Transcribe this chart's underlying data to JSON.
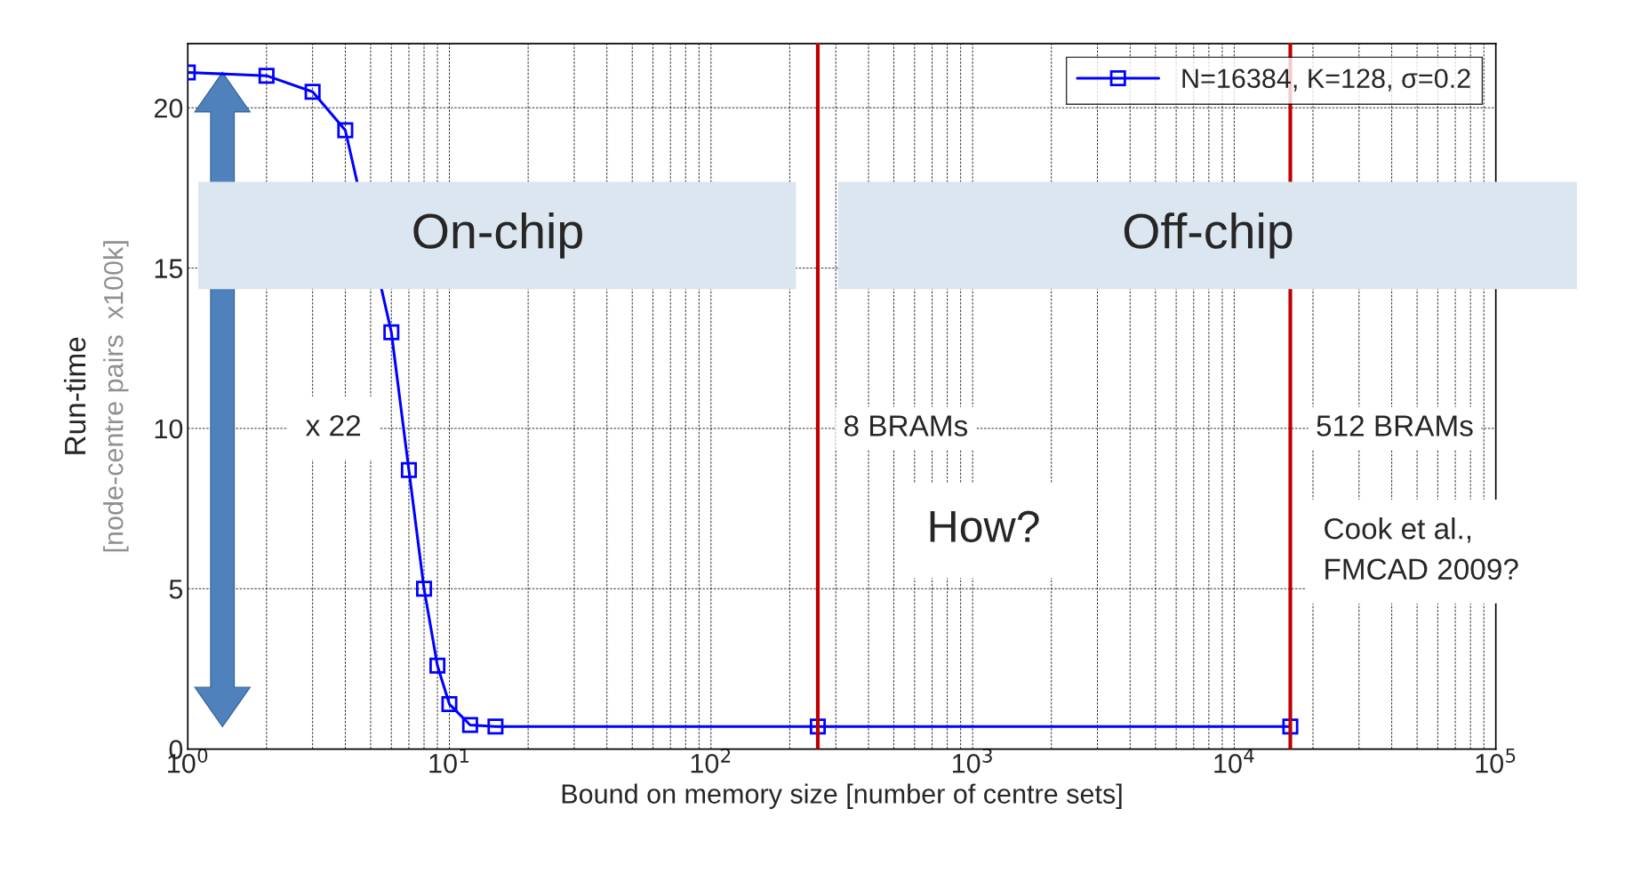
{
  "chart_data": {
    "type": "line",
    "xlabel": "Bound on memory size [number of centre sets]",
    "ylabel": "Run-time\n[node-centre pairs  x100k]",
    "x": [
      1,
      2,
      3,
      4,
      6,
      7,
      8,
      9,
      10,
      12,
      15,
      256,
      16384
    ],
    "series": [
      {
        "name": "N=16384, K=128, σ=0.2",
        "color": "#0000ff",
        "values": [
          21.1,
          21.0,
          20.5,
          19.3,
          13.0,
          8.7,
          5.0,
          2.6,
          1.4,
          0.75,
          0.7,
          0.7,
          0.7
        ]
      }
    ],
    "log": "x",
    "xlim": [
      1,
      100000
    ],
    "xticks": [
      {
        "value": 1,
        "label": "10$^{0}$"
      },
      {
        "value": 10,
        "label": "10$^{1}$"
      },
      {
        "value": 100,
        "label": "10$^{2}$"
      },
      {
        "value": 1000,
        "label": "10$^{3}$"
      },
      {
        "value": 10000,
        "label": "10$^{4}$"
      },
      {
        "value": 100000,
        "label": "10$^{5}$"
      }
    ],
    "ylim": [
      0,
      22
    ],
    "yticks": [
      0,
      5,
      10,
      15,
      20
    ],
    "grid": true,
    "legend": "top right",
    "marker": "square",
    "line_style": "solid",
    "ref_lines": [
      {
        "axis": "x",
        "value": 256,
        "label": "8 BRAMs",
        "color": "#c00000"
      },
      {
        "axis": "x",
        "value": 16384,
        "label": "512 BRAMs",
        "color": "#c00000"
      }
    ],
    "annotations": [
      "On-chip",
      "Off-chip",
      "x 22",
      "How?",
      "Cook et al.,\nFMCAD 2009?"
    ]
  }
}
